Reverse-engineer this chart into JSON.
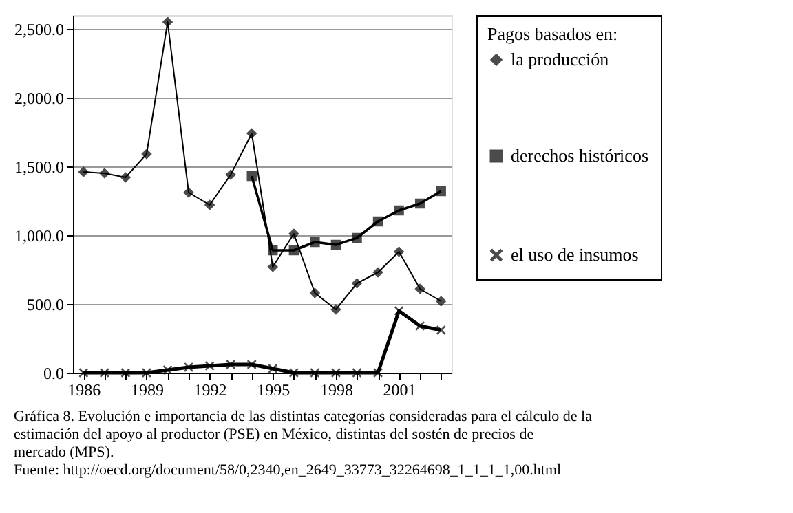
{
  "chart_data": {
    "type": "line",
    "x": [
      1986,
      1987,
      1988,
      1989,
      1990,
      1991,
      1992,
      1993,
      1994,
      1995,
      1996,
      1997,
      1998,
      1999,
      2000,
      2001,
      2002,
      2003
    ],
    "series": [
      {
        "name": "la producción",
        "color": "#000000",
        "marker": "diamond",
        "values": [
          1460,
          1450,
          1420,
          1590,
          2550,
          1310,
          1220,
          1440,
          1740,
          770,
          1010,
          580,
          460,
          650,
          730,
          880,
          610,
          520
        ]
      },
      {
        "name": "derechos históricos",
        "color": "#000000",
        "marker": "square",
        "values": [
          null,
          null,
          null,
          null,
          null,
          null,
          null,
          null,
          1430,
          890,
          890,
          950,
          930,
          980,
          1100,
          1180,
          1230,
          1320
        ]
      },
      {
        "name": "el uso de insumos",
        "color": "#000000",
        "marker": "cross",
        "values": [
          0,
          0,
          0,
          0,
          20,
          40,
          50,
          60,
          60,
          30,
          0,
          0,
          0,
          0,
          0,
          450,
          340,
          310
        ]
      }
    ],
    "legend_title": "Pagos basados en:",
    "legend": "right",
    "xlim": [
      1985.5,
      2003.5
    ],
    "xticks": [
      1986,
      {
        "value": 1987,
        "label": null
      },
      {
        "value": 1988,
        "label": null
      },
      1989,
      {
        "value": 1990,
        "label": null
      },
      {
        "value": 1991,
        "label": null
      },
      1992,
      {
        "value": 1993,
        "label": null
      },
      {
        "value": 1994,
        "label": null
      },
      1995,
      {
        "value": 1996,
        "label": null
      },
      {
        "value": 1997,
        "label": null
      },
      1998,
      {
        "value": 1999,
        "label": null
      },
      {
        "value": 2000,
        "label": null
      },
      2001,
      {
        "value": 2002,
        "label": null
      },
      {
        "value": 2003,
        "label": null
      }
    ],
    "ylim": [
      0,
      2600
    ],
    "yticks": [
      {
        "value": 0,
        "label": "0.0"
      },
      {
        "value": 500,
        "label": "500.0"
      },
      {
        "value": 1000,
        "label": "1,000.0"
      },
      {
        "value": 1500,
        "label": "1,500.0"
      },
      {
        "value": 2000,
        "label": "2,000.0"
      },
      {
        "value": 2500,
        "label": "2,500.0"
      }
    ],
    "grid": "y",
    "annotations": [
      "Gráfica 8.  Evolución e importancia de las distintas categorías consideradas para el cálculo de la estimación del apoyo al productor (PSE) en México, distintas del sostén de precios de mercado (MPS).",
      "Fuente:  http://oecd.org/document/58/0,2340,en_2649_33773_32264698_1_1_1_1,00.html"
    ]
  }
}
